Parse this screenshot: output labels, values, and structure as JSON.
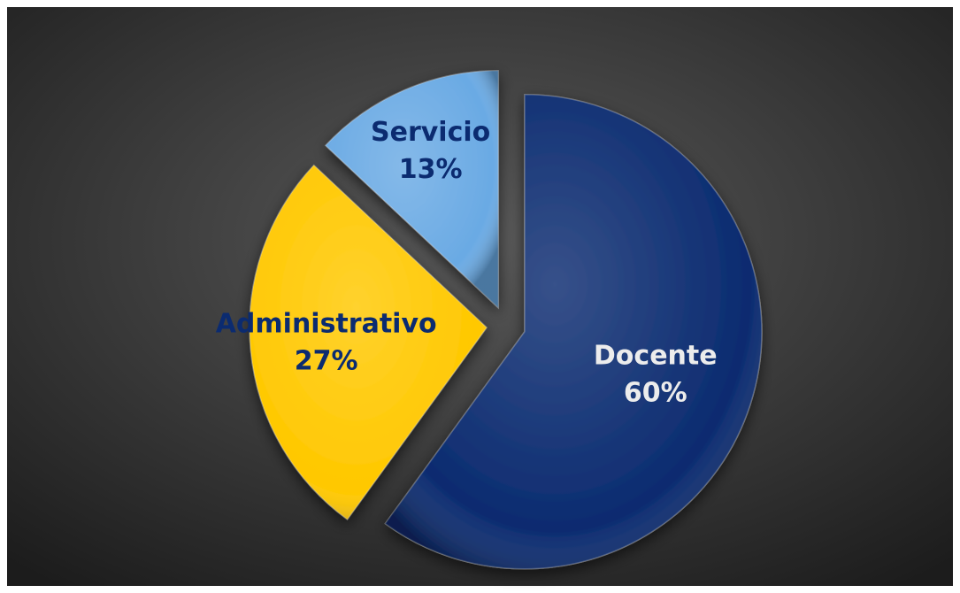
{
  "chart_data": {
    "type": "pie",
    "categories": [
      "Docente",
      "Administrativo",
      "Servicio"
    ],
    "values": [
      60,
      27,
      13
    ],
    "value_labels": [
      "60%",
      "27%",
      "13%"
    ],
    "colors": [
      "#0b2b70",
      "#ffc800",
      "#6aaae4"
    ]
  }
}
